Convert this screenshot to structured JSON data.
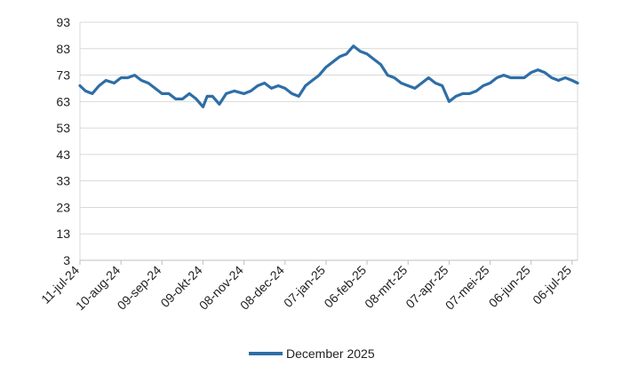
{
  "chart_data": {
    "type": "line",
    "title": "",
    "xlabel": "",
    "ylabel": "",
    "ylim": [
      3,
      93
    ],
    "y_ticks": [
      "93",
      "83",
      "73",
      "63",
      "53",
      "43",
      "33",
      "23",
      "13",
      "3"
    ],
    "x_ticks": [
      "11-jul-24",
      "10-aug-24",
      "09-sep-24",
      "09-okt-24",
      "08-nov-24",
      "08-dec-24",
      "07-jan-25",
      "06-feb-25",
      "08-mrt-25",
      "07-apr-25",
      "07-mei-25",
      "06-jun-25",
      "06-jul-25"
    ],
    "grid": "horizontal",
    "legend_position": "bottom",
    "series": [
      {
        "name": "December 2025",
        "color": "#2e6ea6",
        "x": [
          "11-jul-24",
          "15-jul-24",
          "20-jul-24",
          "25-jul-24",
          "30-jul-24",
          "05-aug-24",
          "10-aug-24",
          "15-aug-24",
          "20-aug-24",
          "25-aug-24",
          "30-aug-24",
          "04-sep-24",
          "09-sep-24",
          "14-sep-24",
          "19-sep-24",
          "24-sep-24",
          "29-sep-24",
          "04-okt-24",
          "09-okt-24",
          "12-okt-24",
          "16-okt-24",
          "21-okt-24",
          "26-okt-24",
          "01-nov-24",
          "08-nov-24",
          "13-nov-24",
          "18-nov-24",
          "23-nov-24",
          "28-nov-24",
          "03-dec-24",
          "08-dec-24",
          "13-dec-24",
          "18-dec-24",
          "23-dec-24",
          "28-dec-24",
          "02-jan-25",
          "07-jan-25",
          "12-jan-25",
          "17-jan-25",
          "22-jan-25",
          "27-jan-25",
          "01-feb-25",
          "06-feb-25",
          "11-feb-25",
          "16-feb-25",
          "21-feb-25",
          "26-feb-25",
          "03-mrt-25",
          "08-mrt-25",
          "13-mrt-25",
          "18-mrt-25",
          "23-mrt-25",
          "28-mrt-25",
          "02-apr-25",
          "07-apr-25",
          "12-apr-25",
          "17-apr-25",
          "22-apr-25",
          "27-apr-25",
          "02-mei-25",
          "07-mei-25",
          "12-mei-25",
          "17-mei-25",
          "22-mei-25",
          "27-mei-25",
          "01-jun-25",
          "06-jun-25",
          "11-jun-25",
          "16-jun-25",
          "21-jun-25",
          "26-jun-25",
          "01-jul-25",
          "06-jul-25",
          "10-jul-25"
        ],
        "values": [
          69,
          67,
          66,
          69,
          71,
          70,
          72,
          72,
          73,
          71,
          70,
          68,
          66,
          66,
          64,
          64,
          66,
          64,
          61,
          65,
          65,
          62,
          66,
          67,
          66,
          67,
          69,
          70,
          68,
          69,
          68,
          66,
          65,
          69,
          71,
          73,
          76,
          78,
          80,
          81,
          84,
          82,
          81,
          79,
          77,
          73,
          72,
          70,
          69,
          68,
          70,
          72,
          70,
          69,
          63,
          65,
          66,
          66,
          67,
          69,
          70,
          72,
          73,
          72,
          72,
          72,
          74,
          75,
          74,
          72,
          71,
          72,
          71,
          70
        ]
      }
    ]
  }
}
